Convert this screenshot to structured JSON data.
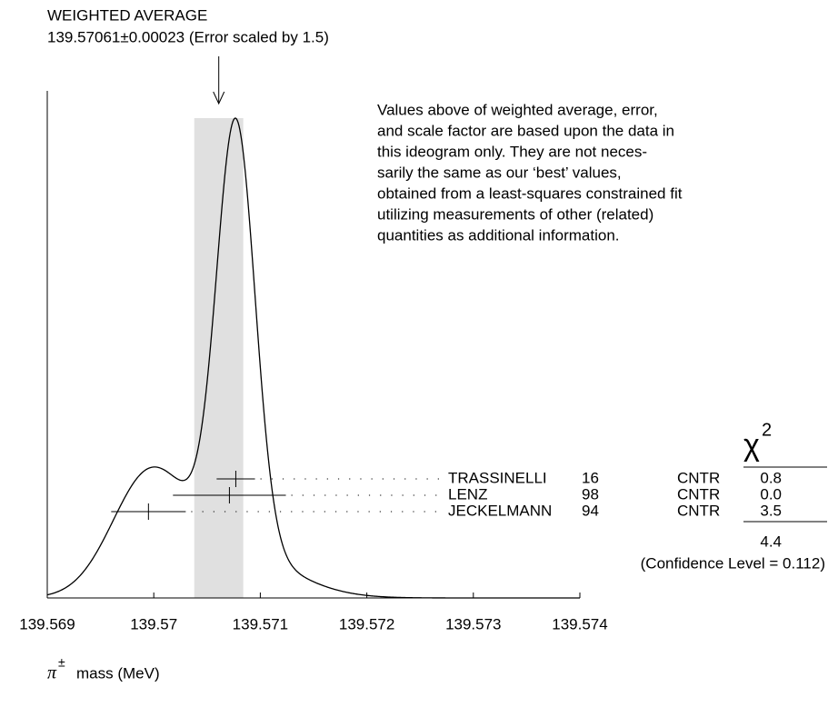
{
  "chart_data": {
    "type": "ideogram",
    "title": "WEIGHTED AVERAGE",
    "average": {
      "value": 139.57061,
      "error": 0.00023,
      "label": "139.57061±0.00023 (Error scaled by 1.5)"
    },
    "note": [
      "Values above of weighted average, error,",
      "and scale factor are based upon the data in",
      "this ideogram only.  They are not neces-",
      "sarily the same as our ‘best’ values,",
      "obtained from a least-squares constrained fit",
      "utilizing measurements of other (related)",
      "quantities as additional information."
    ],
    "chi2_header": "χ",
    "chi2_header_sup": "2",
    "measurements": [
      {
        "name": "TRASSINELLI",
        "year": "16",
        "technique": "CNTR",
        "value": 139.57077,
        "error": 0.00018,
        "chi2": "0.8"
      },
      {
        "name": "LENZ",
        "year": "98",
        "technique": "CNTR",
        "value": 139.57071,
        "error": 0.00053,
        "chi2": "0.0"
      },
      {
        "name": "JECKELMANN",
        "year": "94",
        "technique": "CNTR",
        "value": 139.56995,
        "error": 0.00035,
        "chi2": "3.5"
      }
    ],
    "chi2_total": "4.4",
    "confidence_level": "(Confidence Level = 0.112)",
    "xlim": [
      139.569,
      139.574
    ],
    "xticks": [
      139.569,
      139.57,
      139.571,
      139.572,
      139.573,
      139.574
    ],
    "xlabel_symbol": "π",
    "xlabel_sup": "±",
    "xlabel_text": "mass (MeV)"
  }
}
